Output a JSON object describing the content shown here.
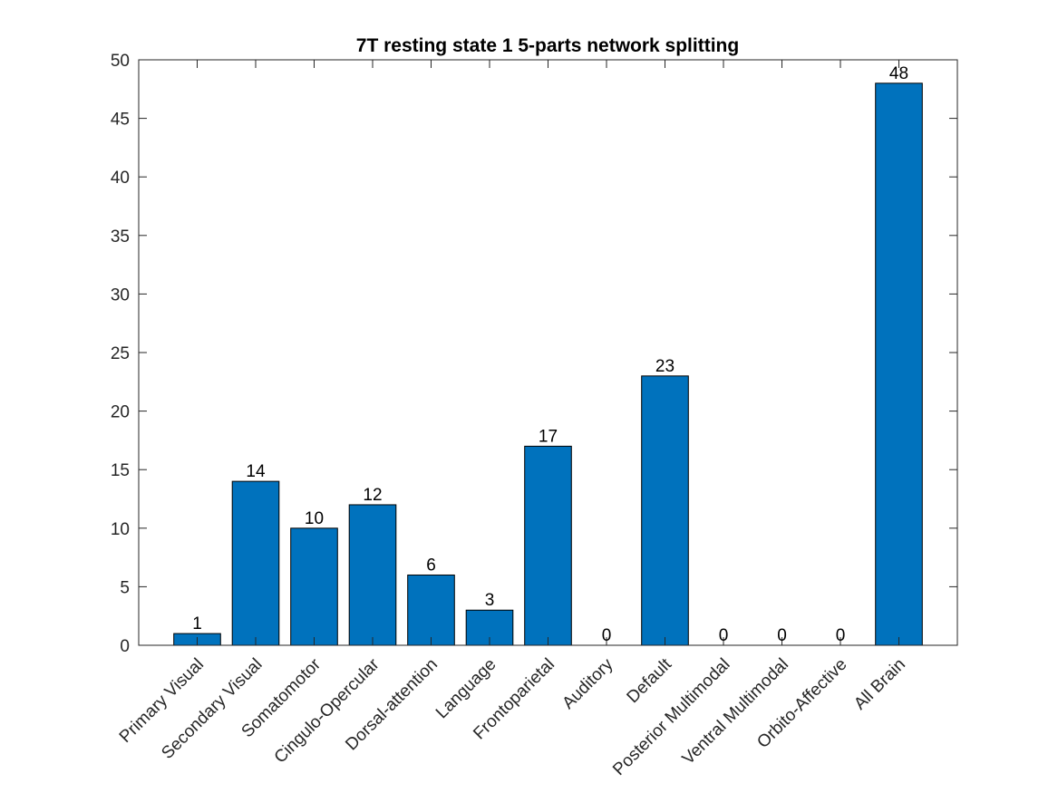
{
  "chart_data": {
    "type": "bar",
    "title": "7T resting state 1 5-parts network splitting",
    "xlabel": "",
    "ylabel": "",
    "categories": [
      "Primary Visual",
      "Secondary Visual",
      "Somatomotor",
      "Cingulo-Opercular",
      "Dorsal-attention",
      "Language",
      "Frontoparietal",
      "Auditory",
      "Default",
      "Posterior Multimodal",
      "Ventral Multimodal",
      "Orbito-Affective",
      "All Brain"
    ],
    "values": [
      1,
      14,
      10,
      12,
      6,
      3,
      17,
      0,
      23,
      0,
      0,
      0,
      48
    ],
    "data_labels": [
      "1",
      "14",
      "10",
      "12",
      "6",
      "3",
      "17",
      "0",
      "23",
      "0",
      "0",
      "0",
      "48"
    ],
    "ylim": [
      0,
      50
    ],
    "yticks": [
      0,
      5,
      10,
      15,
      20,
      25,
      30,
      35,
      40,
      45,
      50
    ],
    "ytick_labels": [
      "0",
      "5",
      "10",
      "15",
      "20",
      "25",
      "30",
      "35",
      "40",
      "45",
      "50"
    ],
    "bar_color": "#0072BD",
    "grid": false,
    "legend": "none"
  }
}
